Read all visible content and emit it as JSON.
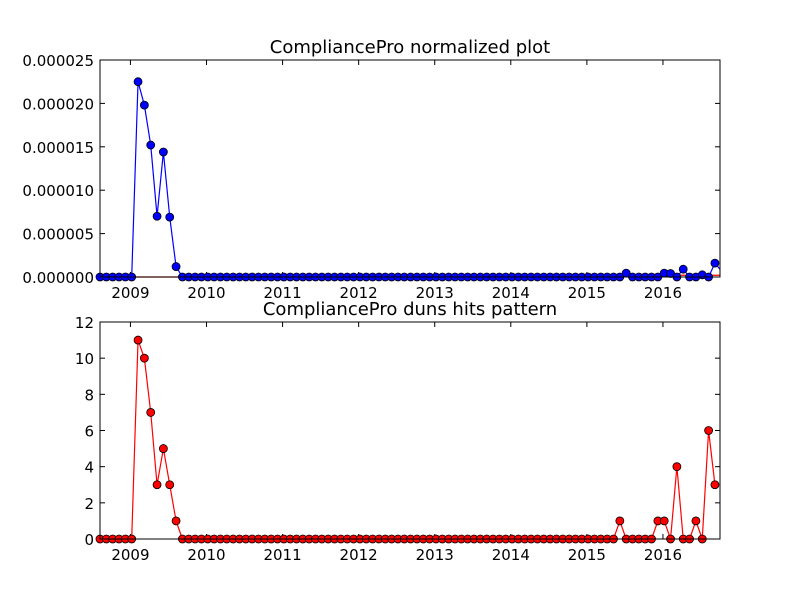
{
  "chart_data": [
    {
      "type": "line",
      "title": "CompliancePro normalized plot",
      "xlabel": "",
      "ylabel": "",
      "xlim": [
        2008.6,
        2016.75
      ],
      "ylim": [
        0,
        2.5e-05
      ],
      "x_ticks": [
        2009,
        2010,
        2011,
        2012,
        2013,
        2014,
        2015,
        2016
      ],
      "x_tick_labels": [
        "2009",
        "2010",
        "2011",
        "2012",
        "2013",
        "2014",
        "2015",
        "2016"
      ],
      "y_ticks": [
        0,
        5e-06,
        1e-05,
        1.5e-05,
        2e-05,
        2.5e-05
      ],
      "y_tick_labels": [
        "0.000000",
        "0.000005",
        "0.000010",
        "0.000015",
        "0.000020",
        "0.000025"
      ],
      "grid": false,
      "series": [
        {
          "color": "#0000ff",
          "marker_edge": "#000000",
          "values": [
            0,
            0,
            0,
            0,
            0,
            0,
            2.25e-05,
            1.98e-05,
            1.52e-05,
            7e-06,
            1.44e-05,
            6.9e-06,
            1.2e-06,
            0,
            0,
            0,
            0,
            0,
            0,
            0,
            0,
            0,
            0,
            0,
            0,
            0,
            0,
            0,
            0,
            0,
            0,
            0,
            0,
            0,
            0,
            0,
            0,
            0,
            0,
            0,
            0,
            0,
            0,
            0,
            0,
            0,
            0,
            0,
            0,
            0,
            0,
            0,
            0,
            0,
            0,
            0,
            0,
            0,
            0,
            0,
            0,
            0,
            0,
            0,
            0,
            0,
            0,
            0,
            0,
            0,
            0,
            0,
            0,
            0,
            0,
            0,
            0,
            0,
            0,
            0,
            0,
            0,
            0,
            4.5e-07,
            0,
            0,
            0,
            0,
            0,
            4.5e-07,
            4e-07,
            0,
            9e-07,
            0,
            0,
            2.5e-07,
            0,
            1.6e-06,
            7e-07
          ]
        },
        {
          "color": "#ff0000",
          "values": [
            0,
            0,
            0,
            0,
            0,
            0,
            0,
            0,
            0,
            0,
            0,
            0,
            0,
            0,
            0,
            0,
            0,
            0,
            0,
            0,
            0,
            0,
            0,
            0,
            0,
            0,
            0,
            0,
            0,
            0,
            0,
            0,
            0,
            0,
            0,
            0,
            0,
            0,
            0,
            0,
            0,
            0,
            0,
            0,
            0,
            0,
            0,
            0,
            0,
            0,
            0,
            0,
            0,
            0,
            0,
            0,
            0,
            0,
            0,
            0,
            0,
            0,
            0,
            0,
            0,
            0,
            0,
            0,
            0,
            0,
            0,
            0,
            0,
            0,
            0,
            0,
            0,
            0,
            0,
            0,
            0,
            0,
            0,
            2e-07,
            2e-07,
            2e-07,
            2e-07,
            2e-07,
            2e-07,
            2e-07,
            2e-07,
            2e-07,
            2e-07,
            2e-07,
            2e-07,
            2e-07,
            2e-07,
            2e-07,
            2e-07
          ]
        }
      ]
    },
    {
      "type": "line",
      "title": "CompliancePro duns hits pattern",
      "xlabel": "",
      "ylabel": "",
      "xlim": [
        2008.6,
        2016.75
      ],
      "ylim": [
        0,
        12
      ],
      "x_ticks": [
        2009,
        2010,
        2011,
        2012,
        2013,
        2014,
        2015,
        2016
      ],
      "x_tick_labels": [
        "2009",
        "2010",
        "2011",
        "2012",
        "2013",
        "2014",
        "2015",
        "2016"
      ],
      "y_ticks": [
        0,
        2,
        4,
        6,
        8,
        10,
        12
      ],
      "y_tick_labels": [
        "0",
        "2",
        "4",
        "6",
        "8",
        "10",
        "12"
      ],
      "grid": false,
      "series": [
        {
          "color": "#ff0000",
          "marker_edge": "#000000",
          "values": [
            0,
            0,
            0,
            0,
            0,
            0,
            11,
            10,
            7,
            3,
            5,
            3,
            1,
            0,
            0,
            0,
            0,
            0,
            0,
            0,
            0,
            0,
            0,
            0,
            0,
            0,
            0,
            0,
            0,
            0,
            0,
            0,
            0,
            0,
            0,
            0,
            0,
            0,
            0,
            0,
            0,
            0,
            0,
            0,
            0,
            0,
            0,
            0,
            0,
            0,
            0,
            0,
            0,
            0,
            0,
            0,
            0,
            0,
            0,
            0,
            0,
            0,
            0,
            0,
            0,
            0,
            0,
            0,
            0,
            0,
            0,
            0,
            0,
            0,
            0,
            0,
            0,
            0,
            0,
            0,
            0,
            0,
            1,
            0,
            0,
            0,
            0,
            0,
            1,
            1,
            0,
            4,
            0,
            0,
            1,
            0,
            6,
            3
          ]
        }
      ]
    }
  ],
  "x_start": 2008.6,
  "x_step": 0.0833333
}
